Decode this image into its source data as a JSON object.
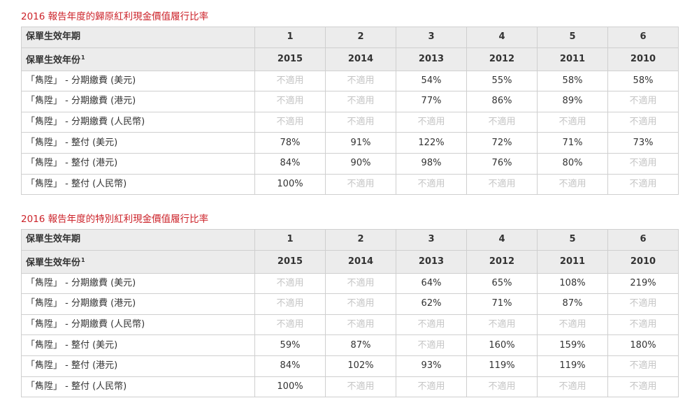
{
  "sections": [
    {
      "title": "2016 報告年度的歸原紅利現金價值履行比率",
      "header_row_1": {
        "label": "保單生效年期",
        "values": [
          "1",
          "2",
          "3",
          "4",
          "5",
          "6"
        ]
      },
      "header_row_2": {
        "label": "保單生效年份",
        "footnote": "1",
        "values": [
          "2015",
          "2014",
          "2013",
          "2012",
          "2011",
          "2010"
        ]
      },
      "rows": [
        {
          "label": "「雋陞」 - 分期繳費 (美元)",
          "values": [
            "不適用",
            "不適用",
            "54%",
            "55%",
            "58%",
            "58%"
          ]
        },
        {
          "label": "「雋陞」 - 分期繳費 (港元)",
          "values": [
            "不適用",
            "不適用",
            "77%",
            "86%",
            "89%",
            "不適用"
          ]
        },
        {
          "label": "「雋陞」 - 分期繳費 (人民幣)",
          "values": [
            "不適用",
            "不適用",
            "不適用",
            "不適用",
            "不適用",
            "不適用"
          ]
        },
        {
          "label": "「雋陞」 - 整付 (美元)",
          "values": [
            "78%",
            "91%",
            "122%",
            "72%",
            "71%",
            "73%"
          ]
        },
        {
          "label": "「雋陞」 - 整付 (港元)",
          "values": [
            "84%",
            "90%",
            "98%",
            "76%",
            "80%",
            "不適用"
          ]
        },
        {
          "label": "「雋陞」 - 整付 (人民幣)",
          "values": [
            "100%",
            "不適用",
            "不適用",
            "不適用",
            "不適用",
            "不適用"
          ]
        }
      ]
    },
    {
      "title": "2016 報告年度的特別紅利現金價值履行比率",
      "header_row_1": {
        "label": "保單生效年期",
        "values": [
          "1",
          "2",
          "3",
          "4",
          "5",
          "6"
        ]
      },
      "header_row_2": {
        "label": "保單生效年份",
        "footnote": "1",
        "values": [
          "2015",
          "2014",
          "2013",
          "2012",
          "2011",
          "2010"
        ]
      },
      "rows": [
        {
          "label": "「雋陞」 - 分期繳費 (美元)",
          "values": [
            "不適用",
            "不適用",
            "64%",
            "65%",
            "108%",
            "219%"
          ]
        },
        {
          "label": "「雋陞」 - 分期繳費 (港元)",
          "values": [
            "不適用",
            "不適用",
            "62%",
            "71%",
            "87%",
            "不適用"
          ]
        },
        {
          "label": "「雋陞」 - 分期繳費 (人民幣)",
          "values": [
            "不適用",
            "不適用",
            "不適用",
            "不適用",
            "不適用",
            "不適用"
          ]
        },
        {
          "label": "「雋陞」 - 整付 (美元)",
          "values": [
            "59%",
            "87%",
            "不適用",
            "160%",
            "159%",
            "180%"
          ]
        },
        {
          "label": "「雋陞」 - 整付 (港元)",
          "values": [
            "84%",
            "102%",
            "93%",
            "119%",
            "119%",
            "不適用"
          ]
        },
        {
          "label": "「雋陞」 - 整付 (人民幣)",
          "values": [
            "100%",
            "不適用",
            "不適用",
            "不適用",
            "不適用",
            "不適用"
          ]
        }
      ]
    }
  ],
  "na_text": "不適用",
  "colors": {
    "title": "#cc2229",
    "header_bg": "#ececec",
    "na_text": "#c4c4c4",
    "border": "#cfcfcf"
  }
}
